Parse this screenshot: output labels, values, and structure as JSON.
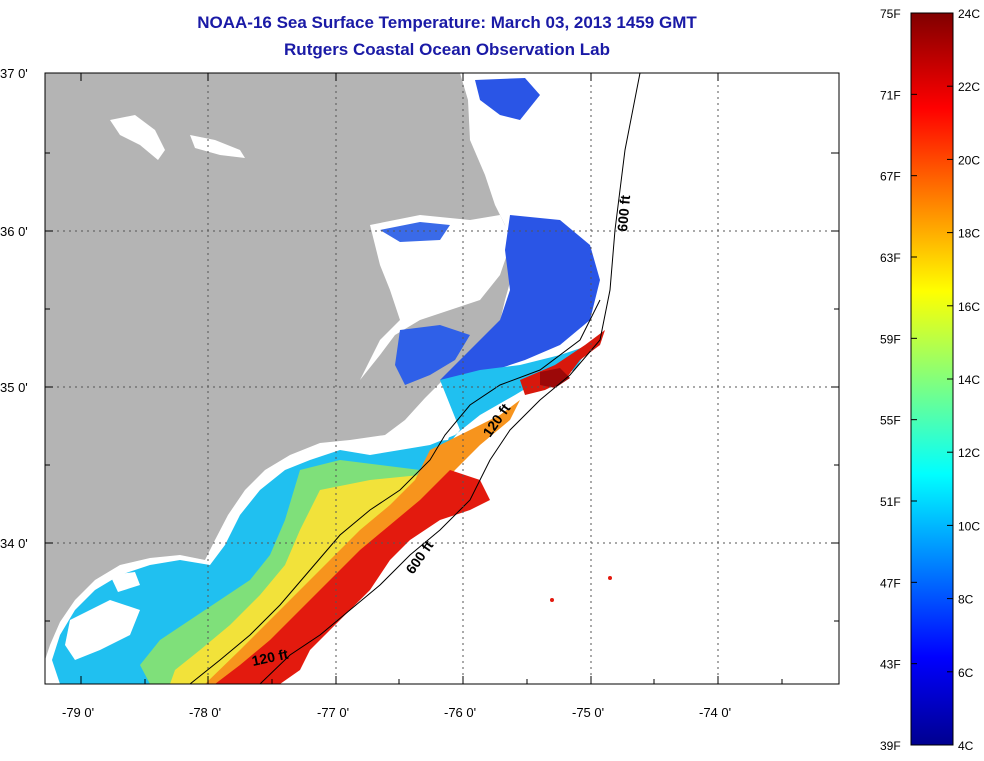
{
  "header": {
    "title": "NOAA-16 Sea Surface Temperature:  March 03, 2013 1459 GMT",
    "subtitle": "Rutgers Coastal Ocean Observation Lab"
  },
  "map": {
    "lat_labels": [
      "37 0'",
      "36 0'",
      "35 0'",
      "34 0'"
    ],
    "lon_labels": [
      "-79 0'",
      "-78 0'",
      "-77 0'",
      "-76 0'",
      "-75 0'",
      "-74 0'"
    ],
    "contours": [
      "600 ft",
      "120 ft",
      "600 ft",
      "120 ft"
    ],
    "land_color": "#b4b4b4",
    "no_data_color": "#ffffff"
  },
  "colorbar": {
    "f_labels": [
      "75F",
      "71F",
      "67F",
      "63F",
      "59F",
      "55F",
      "51F",
      "47F",
      "43F",
      "39F"
    ],
    "c_labels": [
      "24C",
      "22C",
      "20C",
      "18C",
      "16C",
      "14C",
      "12C",
      "10C",
      "8C",
      "6C",
      "4C"
    ],
    "colormap": "jet",
    "range_c": [
      4,
      24
    ],
    "range_f": [
      39,
      75
    ]
  }
}
